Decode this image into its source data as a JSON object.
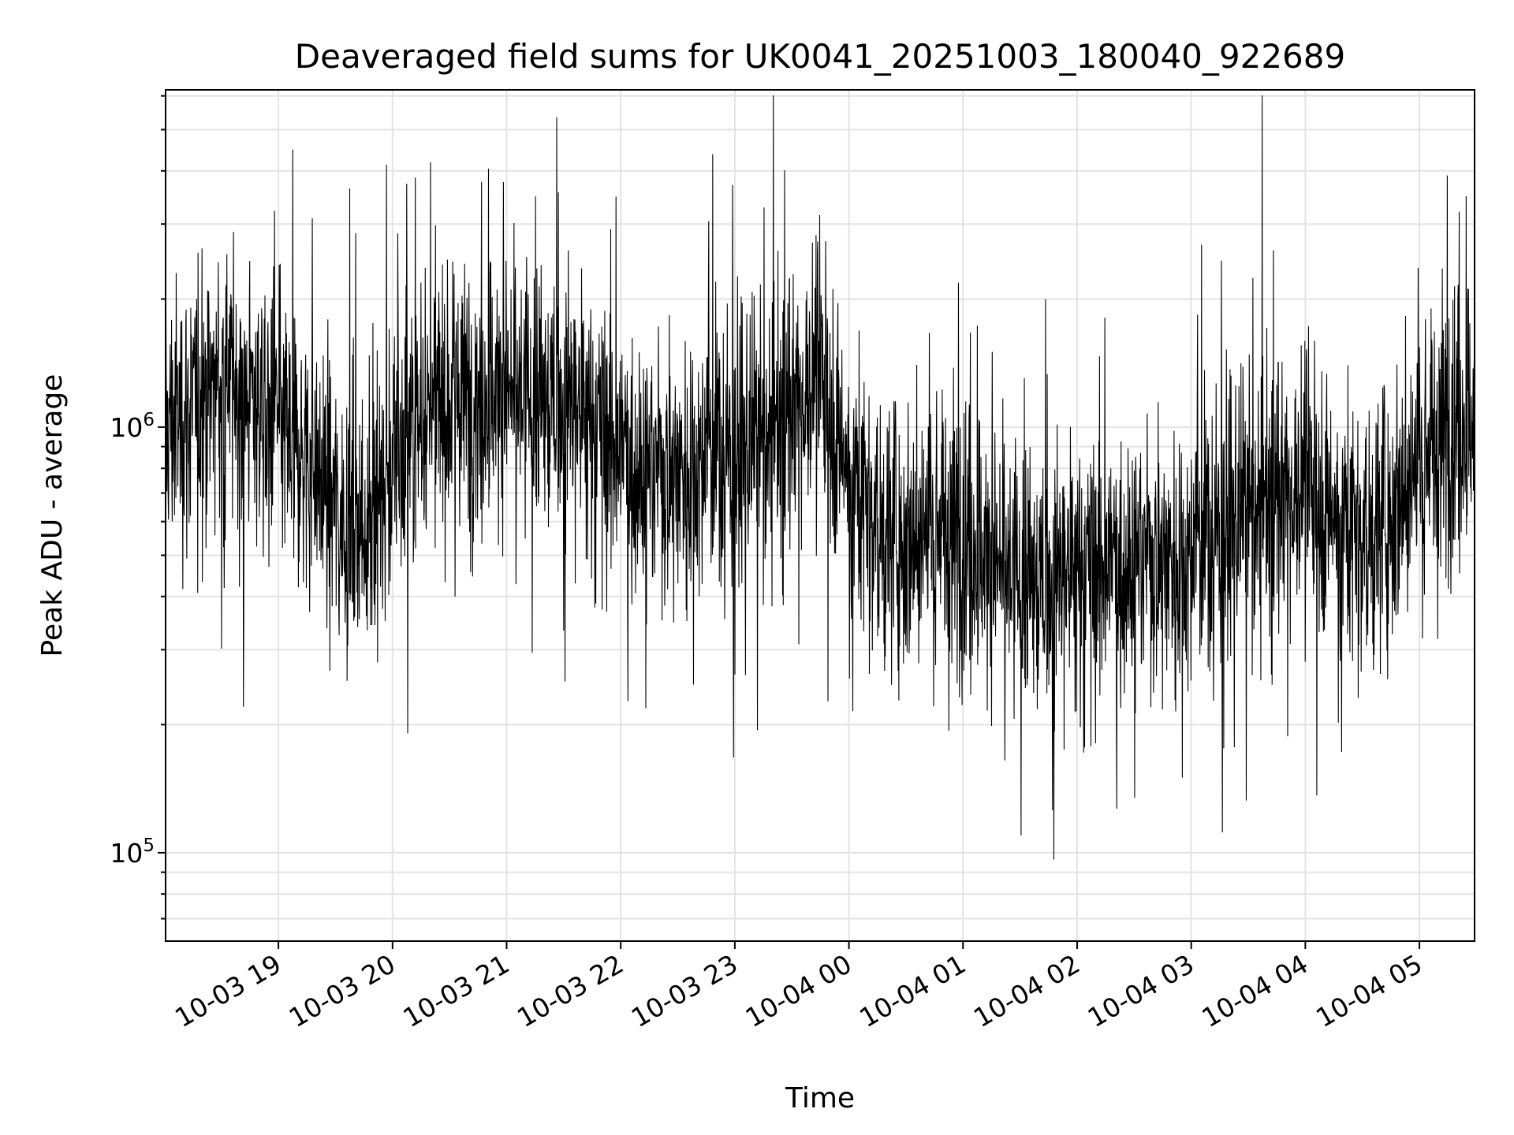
{
  "chart_data": {
    "type": "line",
    "title": "Deaveraged field sums for UK0041_20251003_180040_922689",
    "xlabel": "Time",
    "ylabel": "Peak ADU - average",
    "yscale": "log",
    "ylim": [
      62000,
      6200000
    ],
    "xlim": [
      "2025-10-03T18:00:40",
      "2025-10-04T05:29:00"
    ],
    "grid": true,
    "x_ticks": [
      {
        "value": "2025-10-03T19:00",
        "label": "10-03 19"
      },
      {
        "value": "2025-10-03T20:00",
        "label": "10-03 20"
      },
      {
        "value": "2025-10-03T21:00",
        "label": "10-03 21"
      },
      {
        "value": "2025-10-03T22:00",
        "label": "10-03 22"
      },
      {
        "value": "2025-10-03T23:00",
        "label": "10-03 23"
      },
      {
        "value": "2025-10-04T00:00",
        "label": "10-04 00"
      },
      {
        "value": "2025-10-04T01:00",
        "label": "10-04 01"
      },
      {
        "value": "2025-10-04T02:00",
        "label": "10-04 02"
      },
      {
        "value": "2025-10-04T03:00",
        "label": "10-04 03"
      },
      {
        "value": "2025-10-04T04:00",
        "label": "10-04 04"
      },
      {
        "value": "2025-10-04T05:00",
        "label": "10-04 05"
      }
    ],
    "y_ticks": [
      {
        "value": 100000,
        "base": "10",
        "exp": "5"
      },
      {
        "value": 1000000,
        "base": "10",
        "exp": "6"
      }
    ],
    "series": [
      {
        "color": "#000000",
        "points": [
          [
            "2025-10-03T18:00",
            1000000
          ],
          [
            "2025-10-03T18:15",
            1100000
          ],
          [
            "2025-10-03T18:30",
            1300000
          ],
          [
            "2025-10-03T18:45",
            1200000
          ],
          [
            "2025-10-03T19:00",
            1000000
          ],
          [
            "2025-10-03T19:15",
            850000
          ],
          [
            "2025-10-03T19:30",
            650000
          ],
          [
            "2025-10-03T19:45",
            560000
          ],
          [
            "2025-10-03T20:00",
            800000
          ],
          [
            "2025-10-03T20:15",
            1050000
          ],
          [
            "2025-10-03T20:30",
            1150000
          ],
          [
            "2025-10-03T20:45",
            1200000
          ],
          [
            "2025-10-03T21:00",
            1200000
          ],
          [
            "2025-10-03T21:15",
            1150000
          ],
          [
            "2025-10-03T21:30",
            1150000
          ],
          [
            "2025-10-03T21:45",
            1050000
          ],
          [
            "2025-10-03T22:00",
            900000
          ],
          [
            "2025-10-03T22:15",
            800000
          ],
          [
            "2025-10-03T22:30",
            800000
          ],
          [
            "2025-10-03T22:45",
            850000
          ],
          [
            "2025-10-03T23:00",
            850000
          ],
          [
            "2025-10-03T23:15",
            950000
          ],
          [
            "2025-10-03T23:30",
            1150000
          ],
          [
            "2025-10-03T23:45",
            1300000
          ],
          [
            "2025-10-04T00:00",
            800000
          ],
          [
            "2025-10-04T00:15",
            600000
          ],
          [
            "2025-10-04T00:30",
            550000
          ],
          [
            "2025-10-04T00:45",
            600000
          ],
          [
            "2025-10-04T01:00",
            550000
          ],
          [
            "2025-10-04T01:15",
            480000
          ],
          [
            "2025-10-04T01:30",
            430000
          ],
          [
            "2025-10-04T01:45",
            430000
          ],
          [
            "2025-10-04T02:00",
            470000
          ],
          [
            "2025-10-04T02:15",
            480000
          ],
          [
            "2025-10-04T02:30",
            500000
          ],
          [
            "2025-10-04T02:45",
            500000
          ],
          [
            "2025-10-04T03:00",
            500000
          ],
          [
            "2025-10-04T03:15",
            560000
          ],
          [
            "2025-10-04T03:30",
            640000
          ],
          [
            "2025-10-04T03:45",
            720000
          ],
          [
            "2025-10-04T04:00",
            720000
          ],
          [
            "2025-10-04T04:15",
            640000
          ],
          [
            "2025-10-04T04:30",
            560000
          ],
          [
            "2025-10-04T04:45",
            640000
          ],
          [
            "2025-10-04T05:00",
            850000
          ],
          [
            "2025-10-04T05:15",
            1000000
          ],
          [
            "2025-10-04T05:29",
            1050000
          ]
        ]
      }
    ]
  }
}
